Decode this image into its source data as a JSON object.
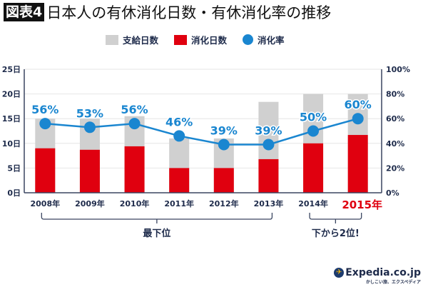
{
  "badge": "図表4",
  "chart_data": {
    "type": "bar",
    "title": "日本人の有休消化日数・有休消化率の推移",
    "categories": [
      "2008年",
      "2009年",
      "2010年",
      "2011年",
      "2012年",
      "2013年",
      "2014年",
      "2015年"
    ],
    "highlight_category": "2015年",
    "series": [
      {
        "name": "支給日数",
        "type": "bar",
        "color": "#d0d0d0",
        "values": [
          15,
          15,
          15.5,
          11,
          11,
          18.4,
          20,
          20
        ]
      },
      {
        "name": "消化日数",
        "type": "bar",
        "color": "#e0000f",
        "values": [
          9,
          8.7,
          9.4,
          5,
          5,
          6.8,
          10,
          11.7
        ]
      },
      {
        "name": "消化率",
        "type": "line",
        "axis": "right",
        "color": "#1a86d0",
        "values": [
          56,
          53,
          56,
          46,
          39,
          39,
          50,
          60
        ],
        "labels": [
          "56%",
          "53%",
          "56%",
          "46%",
          "39%",
          "39%",
          "50%",
          "60%"
        ]
      }
    ],
    "left_axis": {
      "ylim": [
        0,
        25
      ],
      "ticks": [
        "0日",
        "5日",
        "10日",
        "15日",
        "20日",
        "25日"
      ]
    },
    "right_axis": {
      "ylim": [
        0,
        100
      ],
      "ticks": [
        "0%",
        "20%",
        "40%",
        "60%",
        "80%",
        "100%"
      ]
    },
    "grid": true,
    "legend": "top",
    "annotations": [
      {
        "text": "最下位",
        "range": [
          "2008年",
          "2013年"
        ]
      },
      {
        "text": "下から2位!",
        "range": [
          "2014年",
          "2015年"
        ]
      }
    ]
  },
  "logo": {
    "name": "Expedia.co.jp",
    "tagline": "かしこい旅、エクスペディア"
  }
}
